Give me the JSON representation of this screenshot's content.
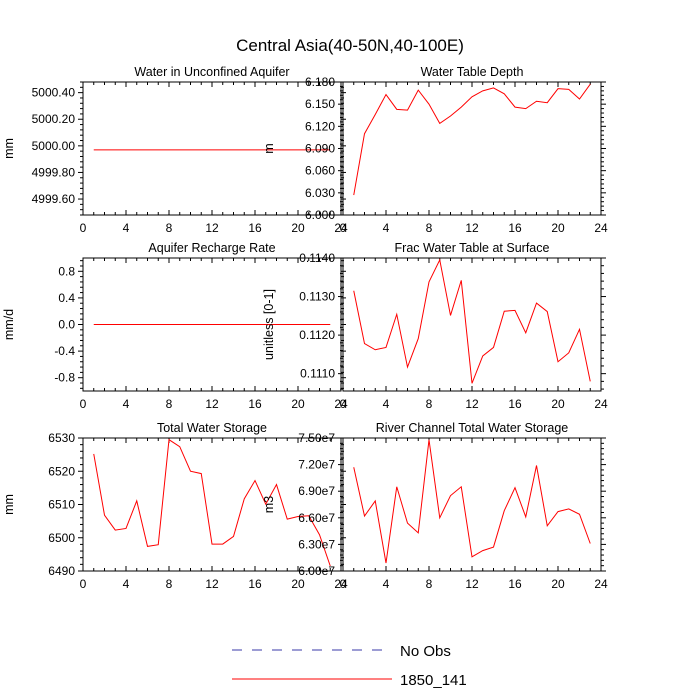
{
  "figure": {
    "title": "Central Asia(40-50N,40-100E)"
  },
  "colors": {
    "no_obs": "#3a3aa8",
    "model": "#ff0000",
    "axis": "#000000"
  },
  "legend": {
    "entries": [
      {
        "label": "No Obs",
        "style": "dashed",
        "color": "#3a3aa8"
      },
      {
        "label": "1850_141",
        "style": "solid",
        "color": "#ff0000"
      }
    ]
  },
  "chart_data": [
    {
      "type": "line",
      "title": "Water in Unconfined Aquifer",
      "ylabel": "mm",
      "xlim": [
        0,
        24
      ],
      "xticks": [
        0,
        4,
        8,
        12,
        16,
        20,
        24
      ],
      "ylim": [
        4999.48,
        5000.48
      ],
      "yticks": [
        4999.6,
        4999.8,
        5000.0,
        5000.2,
        5000.4
      ],
      "ytick_labels": [
        "4999.60",
        "4999.80",
        "5000.00",
        "5000.20",
        "5000.40"
      ],
      "series": [
        {
          "name": "1850_141",
          "x": [
            1,
            2,
            3,
            4,
            5,
            6,
            7,
            8,
            9,
            10,
            11,
            12,
            13,
            14,
            15,
            16,
            17,
            18,
            19,
            20,
            21,
            22,
            23
          ],
          "y": [
            4999.97,
            4999.97,
            4999.97,
            4999.97,
            4999.97,
            4999.97,
            4999.97,
            4999.97,
            4999.97,
            4999.97,
            4999.97,
            4999.97,
            4999.97,
            4999.97,
            4999.97,
            4999.97,
            4999.97,
            4999.97,
            4999.97,
            4999.97,
            4999.97,
            4999.97,
            4999.97
          ]
        }
      ]
    },
    {
      "type": "line",
      "title": "Water Table Depth",
      "ylabel": "m",
      "xlim": [
        0,
        24
      ],
      "xticks": [
        0,
        4,
        8,
        12,
        16,
        20,
        24
      ],
      "ylim": [
        6.0,
        6.18
      ],
      "yticks": [
        6.0,
        6.03,
        6.06,
        6.09,
        6.12,
        6.15,
        6.18
      ],
      "ytick_labels": [
        "6.000",
        "6.030",
        "6.060",
        "6.090",
        "6.120",
        "6.150",
        "6.180"
      ],
      "series": [
        {
          "name": "1850_141",
          "x": [
            1,
            2,
            3,
            4,
            5,
            6,
            7,
            8,
            9,
            10,
            11,
            12,
            13,
            14,
            15,
            16,
            17,
            18,
            19,
            20,
            21,
            22,
            23
          ],
          "y": [
            6.027,
            6.11,
            6.136,
            6.163,
            6.143,
            6.142,
            6.169,
            6.15,
            6.124,
            6.134,
            6.146,
            6.16,
            6.168,
            6.172,
            6.164,
            6.146,
            6.144,
            6.154,
            6.152,
            6.171,
            6.17,
            6.157,
            6.177
          ]
        }
      ]
    },
    {
      "type": "line",
      "title": "Aquifer Recharge Rate",
      "ylabel": "mm/d",
      "xlim": [
        0,
        24
      ],
      "xticks": [
        0,
        4,
        8,
        12,
        16,
        20,
        24
      ],
      "ylim": [
        -1.0,
        1.0
      ],
      "yticks": [
        -0.8,
        -0.4,
        0.0,
        0.4,
        0.8
      ],
      "ytick_labels": [
        "-0.8",
        "-0.4",
        "0.0",
        "0.4",
        "0.8"
      ],
      "series": [
        {
          "name": "1850_141",
          "x": [
            1,
            2,
            3,
            4,
            5,
            6,
            7,
            8,
            9,
            10,
            11,
            12,
            13,
            14,
            15,
            16,
            17,
            18,
            19,
            20,
            21,
            22,
            23
          ],
          "y": [
            0,
            0,
            0,
            0,
            0,
            0,
            0,
            0,
            0,
            0,
            0,
            0,
            0,
            0,
            0,
            0,
            0,
            0,
            0,
            0,
            0,
            0,
            0
          ]
        }
      ]
    },
    {
      "type": "line",
      "title": "Frac Water Table at Surface",
      "ylabel": "unitless [0-1]",
      "xlim": [
        0,
        24
      ],
      "xticks": [
        0,
        4,
        8,
        12,
        16,
        20,
        24
      ],
      "ylim": [
        0.11055,
        0.114
      ],
      "yticks": [
        0.111,
        0.112,
        0.113,
        0.114
      ],
      "ytick_labels": [
        "0.1110",
        "0.1120",
        "0.1130",
        "0.1140"
      ],
      "series": [
        {
          "name": "1850_141",
          "x": [
            1,
            2,
            3,
            4,
            5,
            6,
            7,
            8,
            9,
            10,
            11,
            12,
            13,
            14,
            15,
            16,
            17,
            18,
            19,
            20,
            21,
            22,
            23
          ],
          "y": [
            0.11315,
            0.11178,
            0.11162,
            0.11168,
            0.11254,
            0.11117,
            0.11191,
            0.11338,
            0.11395,
            0.11251,
            0.11342,
            0.11075,
            0.11146,
            0.11168,
            0.11262,
            0.11264,
            0.11206,
            0.11283,
            0.11261,
            0.11131,
            0.11154,
            0.11215,
            0.1108
          ]
        }
      ]
    },
    {
      "type": "line",
      "title": "Total Water Storage",
      "ylabel": "mm",
      "xlim": [
        0,
        24
      ],
      "xticks": [
        0,
        4,
        8,
        12,
        16,
        20,
        24
      ],
      "ylim": [
        6490,
        6530
      ],
      "yticks": [
        6490,
        6500,
        6510,
        6520,
        6530
      ],
      "ytick_labels": [
        "6490",
        "6500",
        "6510",
        "6520",
        "6530"
      ],
      "series": [
        {
          "name": "1850_141",
          "x": [
            1,
            2,
            3,
            4,
            5,
            6,
            7,
            8,
            9,
            10,
            11,
            12,
            13,
            14,
            15,
            16,
            17,
            18,
            19,
            20,
            21,
            22,
            23
          ],
          "y": [
            6525.2,
            6506.8,
            6502.3,
            6502.8,
            6511.1,
            6497.4,
            6497.9,
            6529.5,
            6527.4,
            6520.0,
            6519.3,
            6498.1,
            6498.1,
            6500.4,
            6511.7,
            6517.2,
            6510.1,
            6516.0,
            6505.6,
            6506.4,
            6506.6,
            6500.9,
            6491.5
          ]
        }
      ]
    },
    {
      "type": "line",
      "title": "River Channel Total Water Storage",
      "ylabel": "m3",
      "xlim": [
        0,
        24
      ],
      "xticks": [
        0,
        4,
        8,
        12,
        16,
        20,
        24
      ],
      "ylim": [
        60000000,
        75000000
      ],
      "yticks": [
        60000000,
        63000000,
        66000000,
        69000000,
        72000000,
        75000000
      ],
      "ytick_labels": [
        "6.00e7",
        "6.30e7",
        "6.60e7",
        "6.90e7",
        "7.20e7",
        "7.50e7"
      ],
      "series": [
        {
          "name": "1850_141",
          "x": [
            1,
            2,
            3,
            4,
            5,
            6,
            7,
            8,
            9,
            10,
            11,
            12,
            13,
            14,
            15,
            16,
            17,
            18,
            19,
            20,
            21,
            22,
            23
          ],
          "y": [
            71700000,
            66200000,
            67900000,
            60900000,
            69500000,
            65400000,
            64300000,
            74800000,
            66000000,
            68500000,
            69500000,
            61600000,
            62300000,
            62700000,
            66800000,
            69400000,
            66100000,
            71900000,
            65100000,
            66700000,
            67000000,
            66400000,
            63100000
          ]
        }
      ]
    }
  ]
}
